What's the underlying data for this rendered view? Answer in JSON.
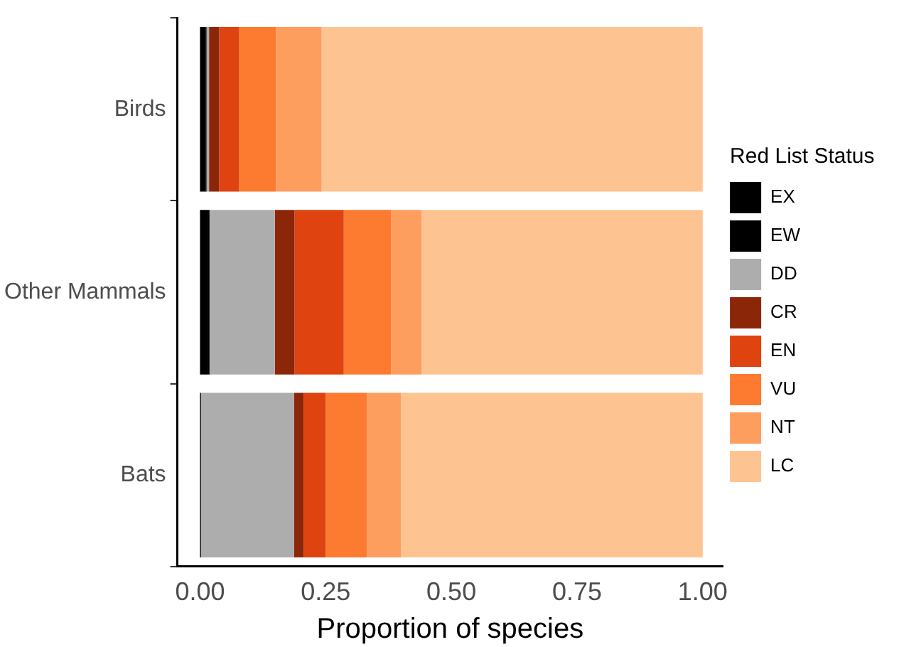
{
  "chart_data": {
    "type": "bar",
    "orientation": "horizontal",
    "stacked": true,
    "categories": [
      "Birds",
      "Other Mammals",
      "Bats"
    ],
    "xlabel": "Proportion of species",
    "legend_title": "Red List Status",
    "legend": "right",
    "grid": false,
    "xlim": [
      -0.045,
      1.04
    ],
    "xticks": [
      {
        "value": 0,
        "label": "0.00"
      },
      {
        "value": 0.25,
        "label": "0.25"
      },
      {
        "value": 0.5,
        "label": "0.50"
      },
      {
        "value": 0.75,
        "label": "0.75"
      },
      {
        "value": 1,
        "label": "1.00"
      }
    ],
    "series": [
      {
        "name": "EX",
        "color": "#000000",
        "values": [
          0.011,
          0.015,
          0.002
        ]
      },
      {
        "name": "EW",
        "color": "#000000",
        "values": [
          0.002,
          0.004,
          0
        ]
      },
      {
        "name": "DD",
        "color": "#adadad",
        "values": [
          0.005,
          0.13,
          0.185
        ]
      },
      {
        "name": "CR",
        "color": "#8c2608",
        "values": [
          0.02,
          0.039,
          0.019
        ]
      },
      {
        "name": "EN",
        "color": "#de4310",
        "values": [
          0.04,
          0.098,
          0.044
        ]
      },
      {
        "name": "VU",
        "color": "#fc7b31",
        "values": [
          0.073,
          0.094,
          0.082
        ]
      },
      {
        "name": "NT",
        "color": "#fd9e5f",
        "values": [
          0.091,
          0.061,
          0.068
        ]
      },
      {
        "name": "LC",
        "color": "#fdc491",
        "values": [
          0.758,
          0.559,
          0.6
        ]
      }
    ]
  }
}
